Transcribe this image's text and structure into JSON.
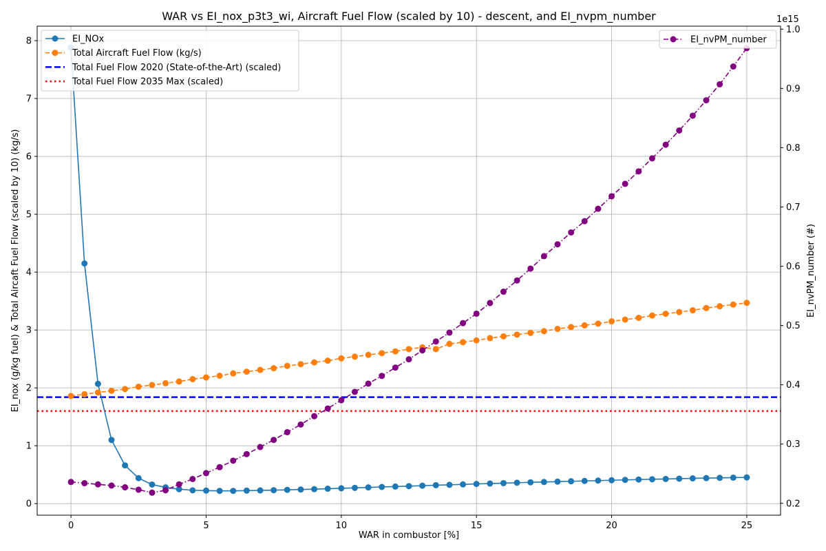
{
  "chart_data": {
    "type": "line",
    "title": "WAR vs EI_nox_p3t3_wi, Aircraft Fuel Flow (scaled by 10) - descent, and EI_nvpm_number",
    "xlabel": "WAR in combustor [%]",
    "ylabel_left": "EI_nox (g/kg fuel) & Total Aircaft Fuel Flow (scaled by 10) (kg/s)",
    "ylabel_right": "EI_nvPM_number (#)",
    "right_axis_multiplier": "1e15",
    "xlim": [
      -1.25,
      26.25
    ],
    "ylim_left": [
      -0.2,
      8.25
    ],
    "ylim_right": [
      0.18,
      1.005
    ],
    "x_ticks": [
      0,
      5,
      10,
      15,
      20,
      25
    ],
    "y_left_ticks": [
      0,
      1,
      2,
      3,
      4,
      5,
      6,
      7,
      8
    ],
    "y_right_ticks": [
      0.2,
      0.3,
      0.4,
      0.5,
      0.6,
      0.7,
      0.8,
      0.9,
      1.0
    ],
    "grid": true,
    "legend_left_placement": "top-left",
    "legend_right_placement": "top-right",
    "x": [
      0,
      0.5,
      1,
      1.5,
      2,
      2.5,
      3,
      3.5,
      4,
      4.5,
      5,
      5.5,
      6,
      6.5,
      7,
      7.5,
      8,
      8.5,
      9,
      9.5,
      10,
      10.5,
      11,
      11.5,
      12,
      12.5,
      13,
      13.5,
      14,
      14.5,
      15,
      15.5,
      16,
      16.5,
      17,
      17.5,
      18,
      18.5,
      19,
      19.5,
      20,
      20.5,
      21,
      21.5,
      22,
      22.5,
      23,
      23.5,
      24,
      24.5,
      25
    ],
    "series": [
      {
        "name": "EI_NOx",
        "axis": "left",
        "color": "#1f77b4",
        "style": "solid",
        "marker": true,
        "values": [
          7.88,
          4.15,
          2.07,
          1.1,
          0.66,
          0.44,
          0.33,
          0.28,
          0.25,
          0.23,
          0.225,
          0.22,
          0.22,
          0.225,
          0.228,
          0.232,
          0.238,
          0.244,
          0.25,
          0.258,
          0.265,
          0.272,
          0.28,
          0.288,
          0.295,
          0.302,
          0.31,
          0.318,
          0.325,
          0.332,
          0.34,
          0.347,
          0.354,
          0.361,
          0.368,
          0.374,
          0.38,
          0.386,
          0.392,
          0.398,
          0.404,
          0.41,
          0.416,
          0.421,
          0.426,
          0.431,
          0.436,
          0.441,
          0.445,
          0.449,
          0.453
        ]
      },
      {
        "name": "Total Aircraft Fuel Flow (kg/s)",
        "axis": "left",
        "color": "#ff7f0e",
        "style": "dashed",
        "marker": true,
        "values": [
          1.86,
          1.89,
          1.92,
          1.95,
          1.98,
          2.02,
          2.05,
          2.08,
          2.11,
          2.15,
          2.18,
          2.21,
          2.25,
          2.28,
          2.31,
          2.34,
          2.38,
          2.41,
          2.44,
          2.47,
          2.51,
          2.54,
          2.57,
          2.6,
          2.63,
          2.67,
          2.7,
          2.67,
          2.76,
          2.79,
          2.82,
          2.86,
          2.89,
          2.92,
          2.95,
          2.98,
          3.02,
          3.05,
          3.08,
          3.11,
          3.15,
          3.18,
          3.21,
          3.25,
          3.28,
          3.31,
          3.34,
          3.38,
          3.41,
          3.44,
          3.47
        ]
      },
      {
        "name": "EI_nvPM_number",
        "axis": "right",
        "color": "#800080",
        "style": "dashdot",
        "marker": true,
        "values": [
          0.236,
          0.234,
          0.232,
          0.23,
          0.227,
          0.223,
          0.218,
          0.222,
          0.232,
          0.241,
          0.251,
          0.261,
          0.272,
          0.283,
          0.295,
          0.307,
          0.32,
          0.333,
          0.347,
          0.36,
          0.374,
          0.388,
          0.402,
          0.415,
          0.429,
          0.443,
          0.458,
          0.473,
          0.488,
          0.504,
          0.52,
          0.538,
          0.557,
          0.576,
          0.596,
          0.617,
          0.637,
          0.657,
          0.676,
          0.697,
          0.718,
          0.739,
          0.76,
          0.782,
          0.805,
          0.829,
          0.854,
          0.88,
          0.907,
          0.937,
          0.968
        ]
      }
    ],
    "hlines": [
      {
        "name": "Total Fuel Flow 2020 (State-of-the-Art) (scaled)",
        "axis": "left",
        "value": 1.84,
        "color": "#0000ff",
        "style": "dashed"
      },
      {
        "name": "Total Fuel Flow 2035 Max (scaled)",
        "axis": "left",
        "value": 1.6,
        "color": "#ff0000",
        "style": "dotted"
      }
    ]
  }
}
